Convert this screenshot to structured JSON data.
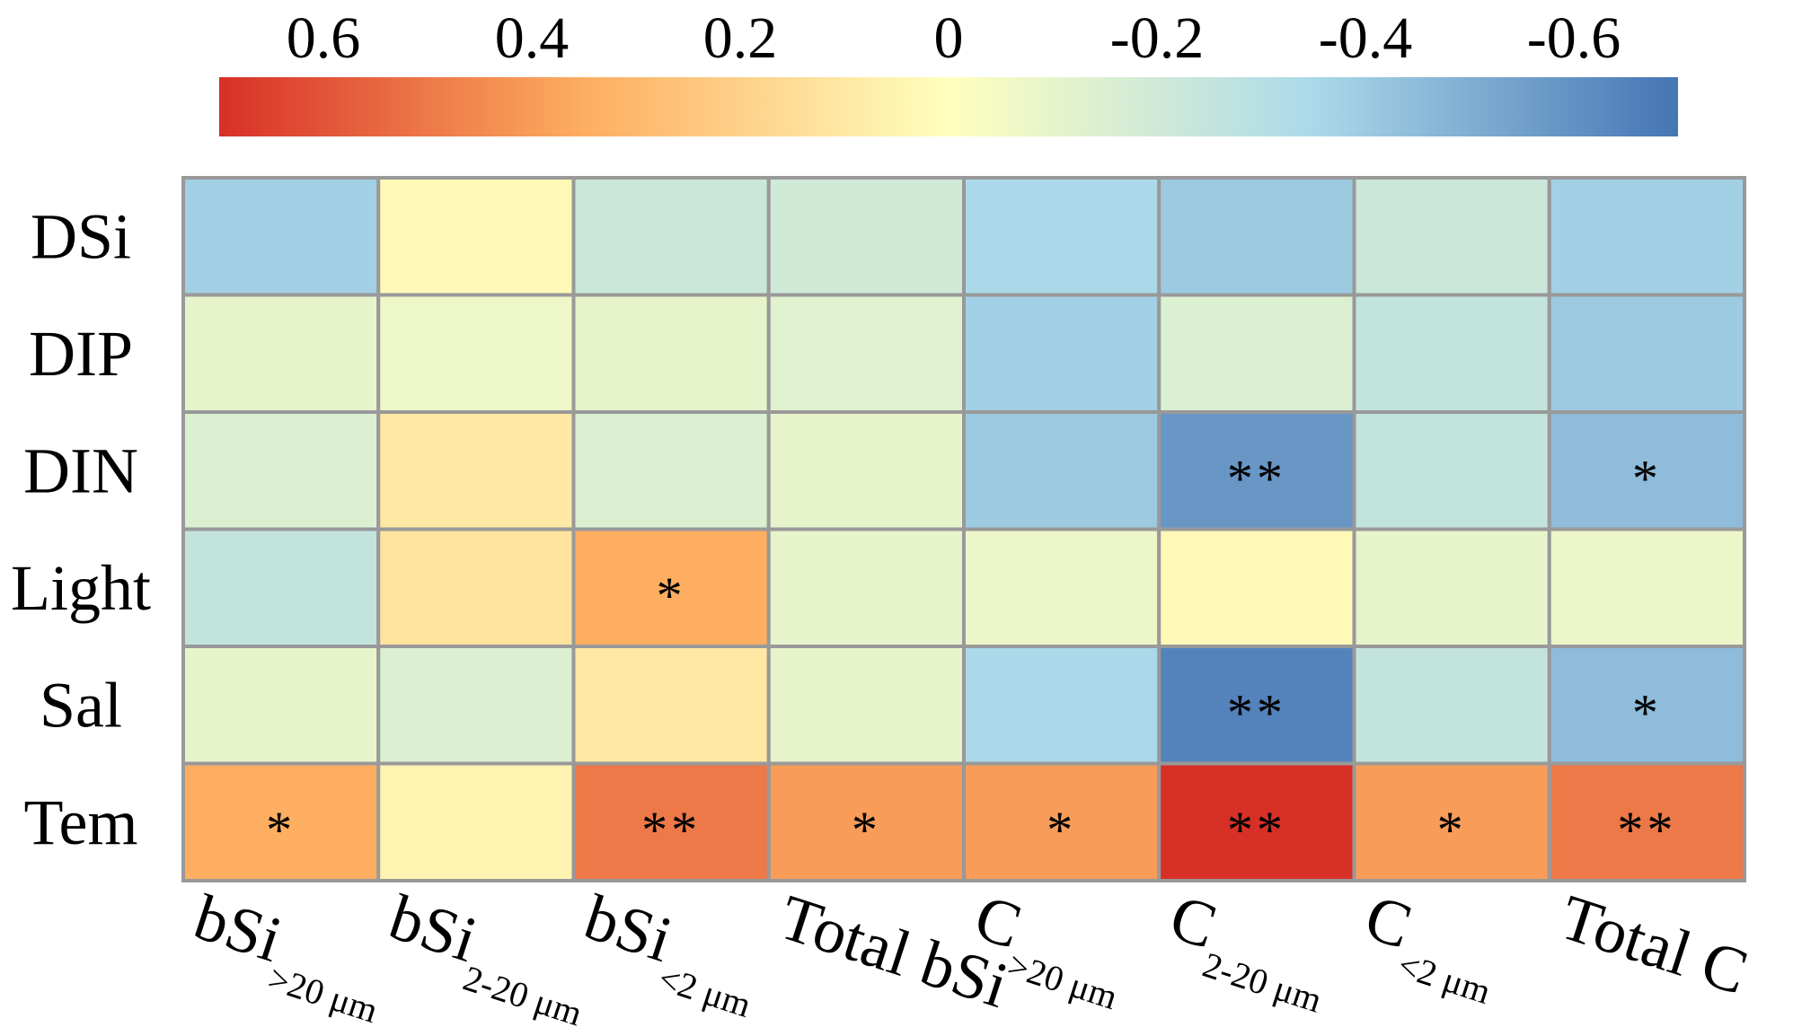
{
  "chart_data": {
    "type": "heatmap",
    "title": "",
    "colorbar": {
      "orientation": "horizontal",
      "placement": "top",
      "ticks": [
        0.6,
        0.4,
        0.2,
        0,
        -0.2,
        -0.4,
        -0.6
      ],
      "tick_labels": [
        "0.6",
        "0.4",
        "0.2",
        "0",
        "-0.2",
        "-0.4",
        "-0.6"
      ],
      "range": [
        0.7,
        -0.7
      ],
      "colors": {
        "high": "#d73027",
        "mid_high": "#fdae61",
        "mid": "#ffffbf",
        "mid_low": "#abd9e9",
        "low": "#4575b4"
      }
    },
    "rows": [
      {
        "label": "DSi",
        "main": "DSi",
        "sub": ""
      },
      {
        "label": "DIP",
        "main": "DIP",
        "sub": ""
      },
      {
        "label": "DIN",
        "main": "DIN",
        "sub": ""
      },
      {
        "label": "Light",
        "main": "Light",
        "sub": ""
      },
      {
        "label": "Sal",
        "main": "Sal",
        "sub": ""
      },
      {
        "label": "Tem",
        "main": "Tem",
        "sub": ""
      }
    ],
    "columns": [
      {
        "main": "bSi",
        "sub": ">20 μm"
      },
      {
        "main": "bSi",
        "sub": "2-20 μm"
      },
      {
        "main": "bSi",
        "sub": "<2 μm"
      },
      {
        "main": "Total bSi",
        "sub": ""
      },
      {
        "main": "C",
        "sub": ">20 μm"
      },
      {
        "main": "C",
        "sub": "2-20 μm"
      },
      {
        "main": "C",
        "sub": "<2 μm"
      },
      {
        "main": "Total C",
        "sub": ""
      }
    ],
    "values": [
      [
        -0.38,
        0.03,
        -0.22,
        -0.2,
        -0.35,
        -0.4,
        -0.22,
        -0.38
      ],
      [
        -0.1,
        -0.07,
        -0.1,
        -0.13,
        -0.38,
        -0.15,
        -0.25,
        -0.4
      ],
      [
        -0.15,
        0.1,
        -0.15,
        -0.1,
        -0.4,
        -0.58,
        -0.25,
        -0.45
      ],
      [
        -0.25,
        0.12,
        0.35,
        -0.1,
        -0.08,
        0.03,
        -0.1,
        -0.08
      ],
      [
        -0.1,
        -0.15,
        0.1,
        -0.1,
        -0.35,
        -0.65,
        -0.25,
        -0.45
      ],
      [
        0.35,
        0.05,
        0.5,
        0.4,
        0.4,
        0.7,
        0.4,
        0.5
      ]
    ],
    "significance": [
      [
        "",
        "",
        "",
        "",
        "",
        "",
        "",
        ""
      ],
      [
        "",
        "",
        "",
        "",
        "",
        "",
        "",
        ""
      ],
      [
        "",
        "",
        "",
        "",
        "",
        "**",
        "",
        "*"
      ],
      [
        "",
        "",
        "*",
        "",
        "",
        "",
        "",
        ""
      ],
      [
        "",
        "",
        "",
        "",
        "",
        "**",
        "",
        "*"
      ],
      [
        "*",
        "",
        "**",
        "*",
        "*",
        "**",
        "*",
        "**"
      ]
    ],
    "grid_color": "#999999"
  }
}
